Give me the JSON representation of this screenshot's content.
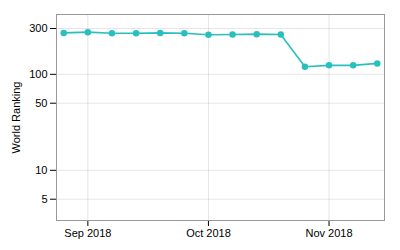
{
  "chart_data": {
    "type": "line",
    "ylabel": "World Ranking",
    "x": [
      0,
      1,
      2,
      3,
      4,
      5,
      6,
      7,
      8,
      9,
      10,
      11,
      12,
      13
    ],
    "values": [
      270,
      275,
      268,
      268,
      270,
      268,
      258,
      260,
      262,
      260,
      120,
      124,
      124,
      130
    ],
    "color": "#2abfbf",
    "marker": "circle",
    "log": "y",
    "grid": true,
    "xlim": [
      -0.3,
      13.3
    ],
    "xticks": [
      {
        "value": 1,
        "label": "Sep 2018"
      },
      {
        "value": 6,
        "label": "Oct 2018"
      },
      {
        "value": 11,
        "label": "Nov 2018"
      }
    ],
    "ylim": [
      3,
      420
    ],
    "yticks": [
      5,
      10,
      50,
      100,
      300
    ]
  }
}
